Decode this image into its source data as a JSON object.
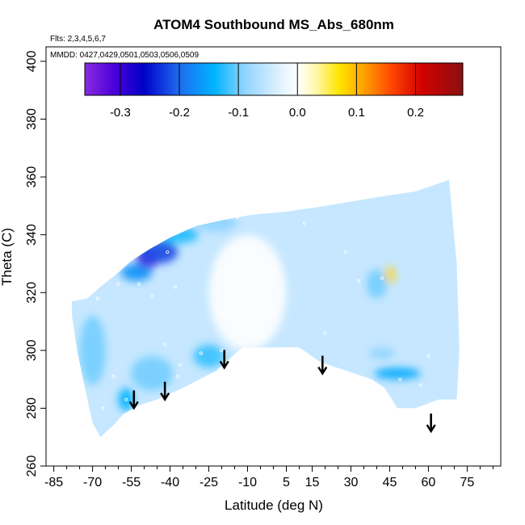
{
  "chart_data": {
    "type": "heatmap",
    "title": "ATOM4 Southbound MS_Abs_680nm",
    "flights_label": "Flts: 2,3,4,5,6,7",
    "dates_label": "MMDD: 0427,0429,0501,0503,0506,0509",
    "xlabel": "Latitude (deg N)",
    "ylabel": "Theta (C)",
    "xlim": [
      -88,
      88
    ],
    "ylim": [
      260,
      405
    ],
    "x_ticks": [
      -85,
      -70,
      -55,
      -40,
      -25,
      -10,
      5,
      15,
      30,
      45,
      60,
      75
    ],
    "x_tick_labels": [
      "-85",
      "-70",
      "-55",
      "-40",
      "-25",
      "-10",
      "5",
      "15",
      "30",
      "45",
      "60",
      "75"
    ],
    "y_ticks": [
      260,
      280,
      300,
      320,
      340,
      360,
      380,
      400
    ],
    "y_tick_labels": [
      "260",
      "280",
      "300",
      "320",
      "340",
      "360",
      "380",
      "400"
    ],
    "colorbar": {
      "range": [
        -0.36,
        0.28
      ],
      "ticks": [
        -0.3,
        -0.2,
        -0.1,
        0.0,
        0.1,
        0.2
      ],
      "tick_labels": [
        "-0.3",
        "-0.2",
        "-0.1",
        "0.0",
        "0.1",
        "0.2"
      ],
      "stops": [
        {
          "v": -0.36,
          "color": "#8a2be2"
        },
        {
          "v": -0.31,
          "color": "#4b00d9"
        },
        {
          "v": -0.26,
          "color": "#0000c8"
        },
        {
          "v": -0.2,
          "color": "#1e6cf0"
        },
        {
          "v": -0.14,
          "color": "#00b4ff"
        },
        {
          "v": -0.09,
          "color": "#8fd4ff"
        },
        {
          "v": -0.04,
          "color": "#d4ecff"
        },
        {
          "v": 0.0,
          "color": "#ffffff"
        },
        {
          "v": 0.03,
          "color": "#fff8b0"
        },
        {
          "v": 0.07,
          "color": "#ffe600"
        },
        {
          "v": 0.11,
          "color": "#ffa500"
        },
        {
          "v": 0.16,
          "color": "#ff4500"
        },
        {
          "v": 0.21,
          "color": "#d20000"
        },
        {
          "v": 0.28,
          "color": "#8b1010"
        }
      ]
    },
    "field": {
      "background_value": -0.05,
      "boundary": [
        [
          -78,
          317
        ],
        [
          -72,
          318
        ],
        [
          -67,
          322
        ],
        [
          -60,
          327
        ],
        [
          -55,
          331
        ],
        [
          -48,
          335
        ],
        [
          -40,
          339
        ],
        [
          -30,
          343
        ],
        [
          -20,
          345
        ],
        [
          -8,
          347
        ],
        [
          5,
          348
        ],
        [
          20,
          350
        ],
        [
          40,
          353
        ],
        [
          55,
          355
        ],
        [
          68,
          359
        ],
        [
          71,
          330
        ],
        [
          72,
          300
        ],
        [
          71,
          283
        ],
        [
          64,
          283
        ],
        [
          55,
          280
        ],
        [
          48,
          280
        ],
        [
          43,
          287
        ],
        [
          38,
          290
        ],
        [
          28,
          293
        ],
        [
          18,
          296
        ],
        [
          10,
          301
        ],
        [
          0,
          301
        ],
        [
          -12,
          301
        ],
        [
          -22,
          293
        ],
        [
          -35,
          287
        ],
        [
          -45,
          283
        ],
        [
          -52,
          281
        ],
        [
          -58,
          278
        ],
        [
          -62,
          274
        ],
        [
          -67,
          270
        ],
        [
          -70,
          275
        ],
        [
          -73,
          287
        ],
        [
          -76,
          300
        ],
        [
          -78,
          312
        ]
      ],
      "anomalies": [
        {
          "lat": -49,
          "theta": 331,
          "value": -0.32,
          "rlat": 4,
          "rtheta": 3
        },
        {
          "lat": -45,
          "theta": 334,
          "value": -0.22,
          "rlat": 8,
          "rtheta": 4
        },
        {
          "lat": -53,
          "theta": 327,
          "value": -0.17,
          "rlat": 6,
          "rtheta": 3
        },
        {
          "lat": -37,
          "theta": 340,
          "value": -0.13,
          "rlat": 8,
          "rtheta": 3
        },
        {
          "lat": -22,
          "theta": 344,
          "value": -0.09,
          "rlat": 8,
          "rtheta": 3
        },
        {
          "lat": -57,
          "theta": 283,
          "value": -0.14,
          "rlat": 3,
          "rtheta": 4
        },
        {
          "lat": -25,
          "theta": 298,
          "value": -0.12,
          "rlat": 6,
          "rtheta": 4
        },
        {
          "lat": -47,
          "theta": 292,
          "value": -0.1,
          "rlat": 8,
          "rtheta": 6
        },
        {
          "lat": 48,
          "theta": 292,
          "value": -0.15,
          "rlat": 9,
          "rtheta": 2
        },
        {
          "lat": 42,
          "theta": 299,
          "value": -0.09,
          "rlat": 5,
          "rtheta": 2
        },
        {
          "lat": 45,
          "theta": 326,
          "value": 0.08,
          "rlat": 2,
          "rtheta": 3
        },
        {
          "lat": 40,
          "theta": 323,
          "value": -0.1,
          "rlat": 4,
          "rtheta": 5
        },
        {
          "lat": -10,
          "theta": 320,
          "value": 0.0,
          "rlat": 15,
          "rtheta": 20
        },
        {
          "lat": -70,
          "theta": 300,
          "value": -0.1,
          "rlat": 5,
          "rtheta": 12
        }
      ]
    },
    "sample_points": [
      [
        -51,
        336
      ],
      [
        -41,
        334
      ],
      [
        -60,
        323
      ],
      [
        -52,
        323
      ],
      [
        -38,
        322
      ],
      [
        -47,
        319
      ],
      [
        -68,
        318
      ],
      [
        -42,
        302
      ],
      [
        -62,
        291
      ],
      [
        -36,
        295
      ],
      [
        -37,
        291
      ],
      [
        -28,
        299
      ],
      [
        -20,
        300
      ],
      [
        -57,
        283
      ],
      [
        -66,
        280
      ],
      [
        -62,
        273
      ],
      [
        -14,
        346
      ],
      [
        12,
        344
      ],
      [
        28,
        334
      ],
      [
        33,
        324
      ],
      [
        42,
        325
      ],
      [
        49,
        290
      ],
      [
        57,
        288
      ],
      [
        60,
        298
      ],
      [
        20,
        306
      ],
      [
        5,
        299
      ]
    ],
    "arrows": [
      -54,
      -42,
      -19,
      19,
      61
    ]
  }
}
